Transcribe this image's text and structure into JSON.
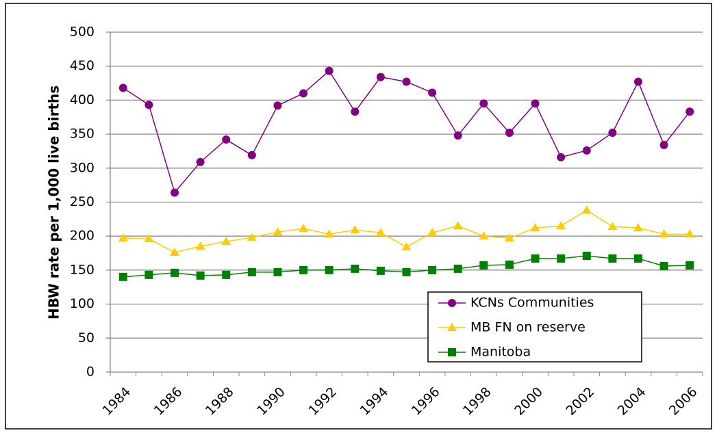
{
  "chart_data": {
    "type": "line",
    "y_label": "HBW rate per 1,000 live births",
    "categories": [
      "1984",
      null,
      "1986",
      null,
      "1988",
      null,
      "1990",
      null,
      "1992",
      null,
      "1994",
      null,
      "1996",
      null,
      "1998",
      null,
      "2000",
      null,
      "2002",
      null,
      "2004",
      null,
      "2006"
    ],
    "series": [
      {
        "name": "KCNs Communities",
        "color": "#800080",
        "marker": "circle",
        "values": [
          418,
          393,
          264,
          309,
          342,
          319,
          392,
          410,
          443,
          383,
          434,
          427,
          411,
          348,
          395,
          352,
          395,
          316,
          326,
          352,
          427,
          334,
          383
        ]
      },
      {
        "name": "MB FN on reserve",
        "color": "#ffcc00",
        "marker": "triangle",
        "values": [
          197,
          196,
          176,
          185,
          192,
          198,
          206,
          211,
          203,
          209,
          205,
          184,
          205,
          215,
          200,
          197,
          212,
          215,
          238,
          214,
          212,
          203,
          203
        ]
      },
      {
        "name": "Manitoba",
        "color": "#008000",
        "marker": "square",
        "values": [
          140,
          143,
          146,
          142,
          143,
          147,
          147,
          150,
          150,
          152,
          149,
          147,
          150,
          152,
          157,
          158,
          167,
          167,
          171,
          167,
          167,
          156,
          157
        ]
      }
    ],
    "ylim": [
      0,
      500
    ],
    "yticks": [
      0,
      50,
      100,
      150,
      200,
      250,
      300,
      350,
      400,
      450,
      500
    ],
    "grid": true
  }
}
